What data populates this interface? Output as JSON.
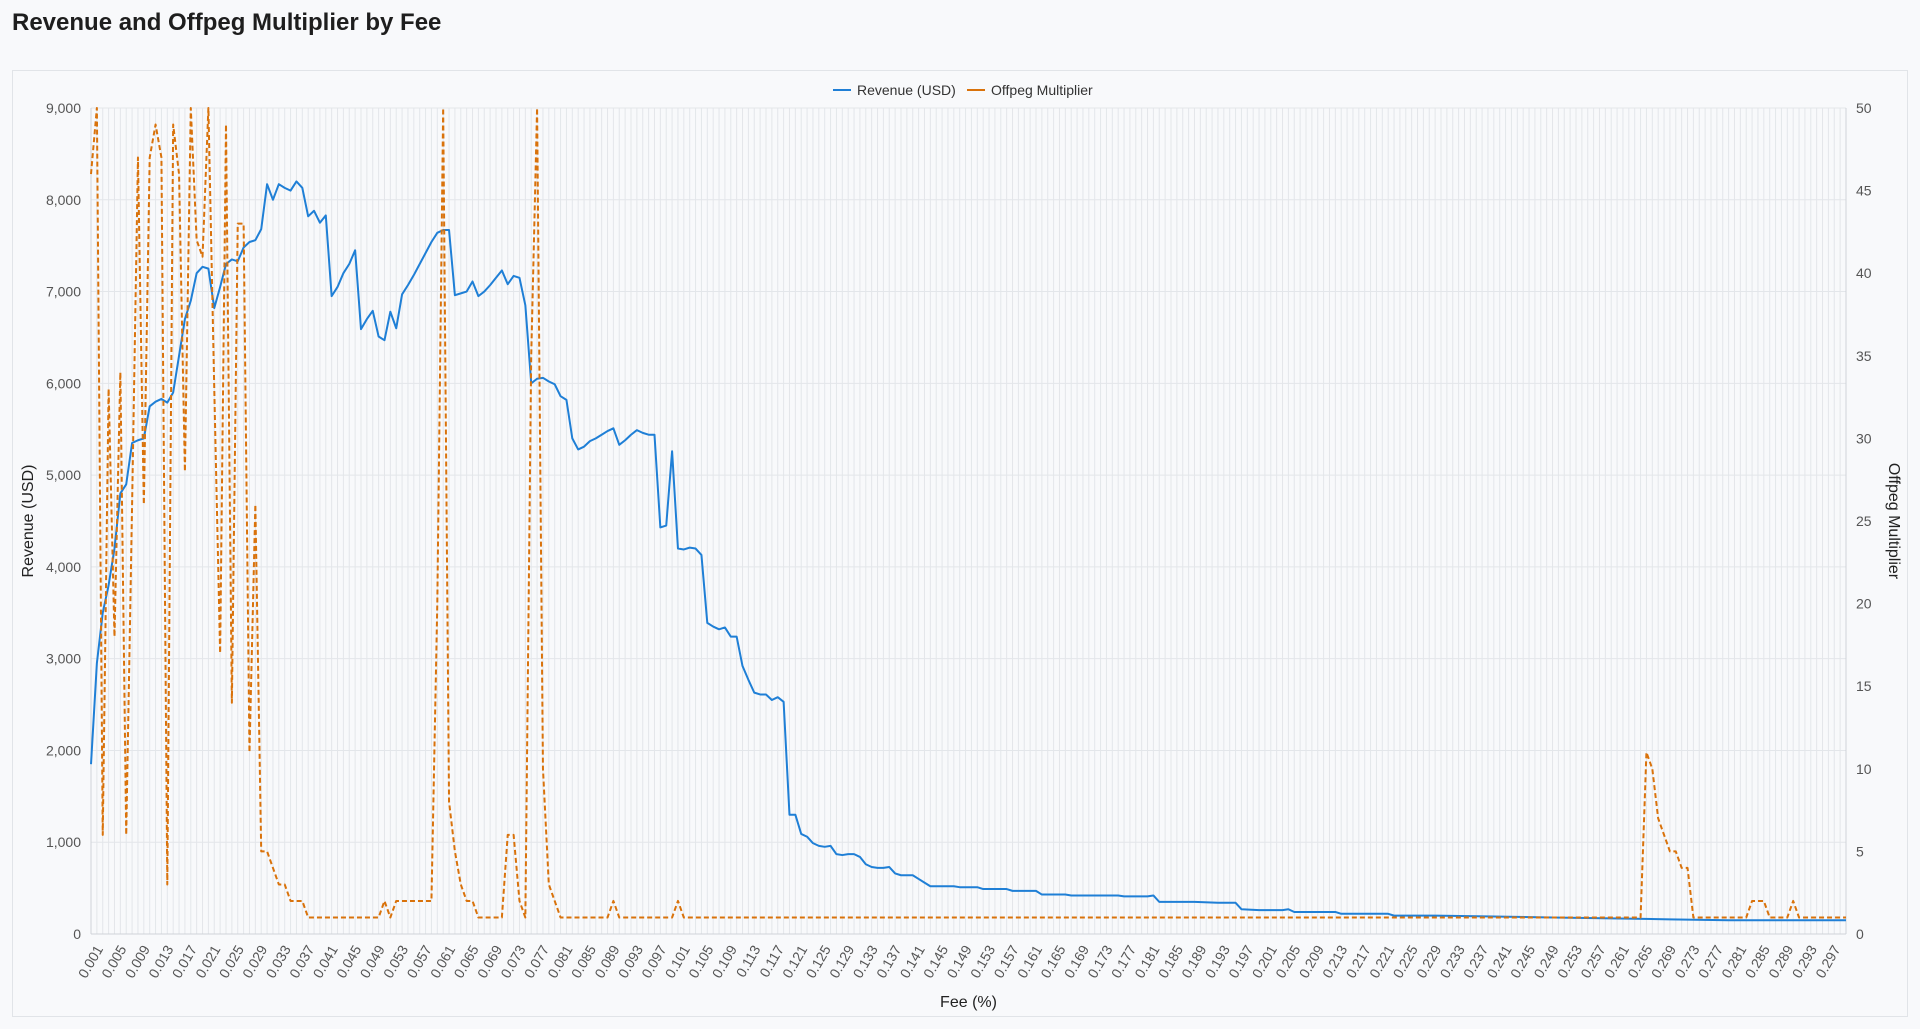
{
  "page": {
    "title": "Revenue and Offpeg Multiplier by Fee"
  },
  "chart_data": {
    "type": "line",
    "title": "",
    "xlabel": "Fee (%)",
    "ylabel_left": "Revenue (USD)",
    "ylabel_right": "Offpeg Multiplier",
    "xlim": [
      0.001,
      0.3
    ],
    "ylim_left": [
      0,
      9000
    ],
    "ylim_right": [
      0,
      50
    ],
    "y_ticks_left": [
      "0",
      "1,000",
      "2,000",
      "3,000",
      "4,000",
      "5,000",
      "6,000",
      "7,000",
      "8,000",
      "9,000"
    ],
    "y_ticks_right": [
      "0",
      "5",
      "10",
      "15",
      "20",
      "25",
      "30",
      "35",
      "40",
      "45",
      "50"
    ],
    "x_tick_labels": [
      "0.001",
      "0.005",
      "0.009",
      "0.013",
      "0.017",
      "0.021",
      "0.025",
      "0.029",
      "0.033",
      "0.037",
      "0.041",
      "0.045",
      "0.049",
      "0.053",
      "0.057",
      "0.061",
      "0.065",
      "0.069",
      "0.073",
      "0.077",
      "0.081",
      "0.085",
      "0.089",
      "0.093",
      "0.097",
      "0.101",
      "0.105",
      "0.109",
      "0.113",
      "0.117",
      "0.121",
      "0.125",
      "0.129",
      "0.133",
      "0.137",
      "0.141",
      "0.145",
      "0.149",
      "0.153",
      "0.157",
      "0.161",
      "0.165",
      "0.169",
      "0.173",
      "0.177",
      "0.181",
      "0.185",
      "0.189",
      "0.193",
      "0.197",
      "0.201",
      "0.205",
      "0.209",
      "0.213",
      "0.217",
      "0.221",
      "0.225",
      "0.229",
      "0.233",
      "0.237",
      "0.241",
      "0.245",
      "0.249",
      "0.253",
      "0.257",
      "0.261",
      "0.265",
      "0.269",
      "0.273",
      "0.277",
      "0.281",
      "0.285",
      "0.289",
      "0.293",
      "0.297"
    ],
    "grid": true,
    "legend_position": "top-center",
    "series": [
      {
        "name": "Revenue (USD)",
        "axis": "left",
        "color": "#1f7fd6",
        "style": "solid",
        "points": [
          [
            0.001,
            1850
          ],
          [
            0.002,
            2950
          ],
          [
            0.003,
            3500
          ],
          [
            0.004,
            3800
          ],
          [
            0.005,
            4200
          ],
          [
            0.006,
            4800
          ],
          [
            0.007,
            4900
          ],
          [
            0.008,
            5350
          ],
          [
            0.009,
            5380
          ],
          [
            0.01,
            5400
          ],
          [
            0.011,
            5750
          ],
          [
            0.012,
            5800
          ],
          [
            0.013,
            5830
          ],
          [
            0.014,
            5790
          ],
          [
            0.015,
            5900
          ],
          [
            0.016,
            6300
          ],
          [
            0.017,
            6700
          ],
          [
            0.018,
            6900
          ],
          [
            0.019,
            7200
          ],
          [
            0.02,
            7270
          ],
          [
            0.021,
            7250
          ],
          [
            0.022,
            6820
          ],
          [
            0.023,
            7050
          ],
          [
            0.024,
            7300
          ],
          [
            0.025,
            7350
          ],
          [
            0.026,
            7330
          ],
          [
            0.027,
            7480
          ],
          [
            0.028,
            7540
          ],
          [
            0.029,
            7560
          ],
          [
            0.03,
            7680
          ],
          [
            0.031,
            8170
          ],
          [
            0.032,
            8000
          ],
          [
            0.033,
            8170
          ],
          [
            0.034,
            8130
          ],
          [
            0.035,
            8100
          ],
          [
            0.036,
            8200
          ],
          [
            0.037,
            8130
          ],
          [
            0.038,
            7820
          ],
          [
            0.039,
            7880
          ],
          [
            0.04,
            7750
          ],
          [
            0.041,
            7830
          ],
          [
            0.042,
            6950
          ],
          [
            0.043,
            7050
          ],
          [
            0.044,
            7200
          ],
          [
            0.045,
            7300
          ],
          [
            0.046,
            7450
          ],
          [
            0.047,
            6590
          ],
          [
            0.048,
            6700
          ],
          [
            0.049,
            6790
          ],
          [
            0.05,
            6510
          ],
          [
            0.051,
            6470
          ],
          [
            0.052,
            6780
          ],
          [
            0.053,
            6600
          ],
          [
            0.054,
            6970
          ],
          [
            0.055,
            7070
          ],
          [
            0.056,
            7180
          ],
          [
            0.057,
            7300
          ],
          [
            0.058,
            7420
          ],
          [
            0.059,
            7540
          ],
          [
            0.06,
            7640
          ],
          [
            0.061,
            7670
          ],
          [
            0.062,
            7670
          ],
          [
            0.063,
            6960
          ],
          [
            0.064,
            6980
          ],
          [
            0.065,
            7000
          ],
          [
            0.066,
            7110
          ],
          [
            0.067,
            6950
          ],
          [
            0.068,
            7000
          ],
          [
            0.069,
            7070
          ],
          [
            0.07,
            7150
          ],
          [
            0.071,
            7230
          ],
          [
            0.072,
            7080
          ],
          [
            0.073,
            7170
          ],
          [
            0.074,
            7150
          ],
          [
            0.075,
            6850
          ],
          [
            0.076,
            6000
          ],
          [
            0.077,
            6050
          ],
          [
            0.078,
            6060
          ],
          [
            0.079,
            6020
          ],
          [
            0.08,
            5990
          ],
          [
            0.081,
            5860
          ],
          [
            0.082,
            5820
          ],
          [
            0.083,
            5400
          ],
          [
            0.084,
            5280
          ],
          [
            0.085,
            5310
          ],
          [
            0.086,
            5370
          ],
          [
            0.087,
            5400
          ],
          [
            0.088,
            5440
          ],
          [
            0.089,
            5480
          ],
          [
            0.09,
            5510
          ],
          [
            0.091,
            5330
          ],
          [
            0.092,
            5380
          ],
          [
            0.093,
            5440
          ],
          [
            0.094,
            5490
          ],
          [
            0.095,
            5460
          ],
          [
            0.096,
            5440
          ],
          [
            0.097,
            5440
          ],
          [
            0.098,
            4430
          ],
          [
            0.099,
            4450
          ],
          [
            0.1,
            5260
          ],
          [
            0.101,
            4200
          ],
          [
            0.102,
            4190
          ],
          [
            0.103,
            4210
          ],
          [
            0.104,
            4200
          ],
          [
            0.105,
            4130
          ],
          [
            0.106,
            3390
          ],
          [
            0.107,
            3350
          ],
          [
            0.108,
            3320
          ],
          [
            0.109,
            3340
          ],
          [
            0.11,
            3240
          ],
          [
            0.111,
            3240
          ],
          [
            0.112,
            2920
          ],
          [
            0.113,
            2770
          ],
          [
            0.114,
            2630
          ],
          [
            0.115,
            2610
          ],
          [
            0.116,
            2610
          ],
          [
            0.117,
            2550
          ],
          [
            0.118,
            2580
          ],
          [
            0.119,
            2530
          ],
          [
            0.12,
            1300
          ],
          [
            0.121,
            1300
          ],
          [
            0.122,
            1090
          ],
          [
            0.123,
            1060
          ],
          [
            0.124,
            990
          ],
          [
            0.125,
            960
          ],
          [
            0.126,
            950
          ],
          [
            0.127,
            960
          ],
          [
            0.128,
            870
          ],
          [
            0.129,
            860
          ],
          [
            0.13,
            870
          ],
          [
            0.131,
            870
          ],
          [
            0.132,
            840
          ],
          [
            0.133,
            760
          ],
          [
            0.134,
            730
          ],
          [
            0.135,
            720
          ],
          [
            0.136,
            720
          ],
          [
            0.137,
            730
          ],
          [
            0.138,
            660
          ],
          [
            0.139,
            640
          ],
          [
            0.14,
            640
          ],
          [
            0.141,
            640
          ],
          [
            0.142,
            600
          ],
          [
            0.143,
            560
          ],
          [
            0.144,
            520
          ],
          [
            0.145,
            520
          ],
          [
            0.148,
            520
          ],
          [
            0.149,
            510
          ],
          [
            0.152,
            510
          ],
          [
            0.153,
            490
          ],
          [
            0.157,
            490
          ],
          [
            0.158,
            470
          ],
          [
            0.162,
            470
          ],
          [
            0.163,
            430
          ],
          [
            0.167,
            430
          ],
          [
            0.168,
            420
          ],
          [
            0.176,
            420
          ],
          [
            0.177,
            410
          ],
          [
            0.181,
            410
          ],
          [
            0.182,
            420
          ],
          [
            0.183,
            350
          ],
          [
            0.189,
            350
          ],
          [
            0.193,
            340
          ],
          [
            0.196,
            340
          ],
          [
            0.197,
            270
          ],
          [
            0.2,
            260
          ],
          [
            0.204,
            260
          ],
          [
            0.205,
            270
          ],
          [
            0.206,
            240
          ],
          [
            0.213,
            240
          ],
          [
            0.214,
            220
          ],
          [
            0.222,
            220
          ],
          [
            0.223,
            200
          ],
          [
            0.23,
            200
          ],
          [
            0.24,
            190
          ],
          [
            0.25,
            180
          ],
          [
            0.26,
            170
          ],
          [
            0.27,
            160
          ],
          [
            0.28,
            150
          ],
          [
            0.29,
            150
          ],
          [
            0.3,
            150
          ]
        ]
      },
      {
        "name": "Offpeg Multiplier",
        "axis": "right",
        "color": "#d9720b",
        "style": "dashed",
        "points": [
          [
            0.001,
            46
          ],
          [
            0.002,
            50
          ],
          [
            0.003,
            6
          ],
          [
            0.004,
            33
          ],
          [
            0.005,
            18
          ],
          [
            0.006,
            34
          ],
          [
            0.007,
            6
          ],
          [
            0.008,
            26
          ],
          [
            0.009,
            47
          ],
          [
            0.01,
            26
          ],
          [
            0.011,
            47
          ],
          [
            0.012,
            49
          ],
          [
            0.013,
            47
          ],
          [
            0.014,
            3
          ],
          [
            0.015,
            49
          ],
          [
            0.016,
            46
          ],
          [
            0.017,
            28
          ],
          [
            0.018,
            50
          ],
          [
            0.019,
            42
          ],
          [
            0.02,
            41
          ],
          [
            0.021,
            50
          ],
          [
            0.022,
            33
          ],
          [
            0.023,
            17
          ],
          [
            0.024,
            49
          ],
          [
            0.025,
            14
          ],
          [
            0.026,
            43
          ],
          [
            0.027,
            43
          ],
          [
            0.028,
            11
          ],
          [
            0.029,
            26
          ],
          [
            0.03,
            5
          ],
          [
            0.031,
            5
          ],
          [
            0.032,
            4
          ],
          [
            0.033,
            3
          ],
          [
            0.034,
            3
          ],
          [
            0.035,
            2
          ],
          [
            0.036,
            2
          ],
          [
            0.037,
            2
          ],
          [
            0.038,
            1
          ],
          [
            0.05,
            1
          ],
          [
            0.051,
            2
          ],
          [
            0.052,
            1
          ],
          [
            0.053,
            2
          ],
          [
            0.058,
            2
          ],
          [
            0.059,
            2
          ],
          [
            0.06,
            20
          ],
          [
            0.061,
            50
          ],
          [
            0.062,
            8
          ],
          [
            0.063,
            5
          ],
          [
            0.064,
            3
          ],
          [
            0.065,
            2
          ],
          [
            0.066,
            2
          ],
          [
            0.067,
            1
          ],
          [
            0.071,
            1
          ],
          [
            0.072,
            6
          ],
          [
            0.073,
            6
          ],
          [
            0.074,
            2
          ],
          [
            0.075,
            1
          ],
          [
            0.076,
            35
          ],
          [
            0.077,
            50
          ],
          [
            0.078,
            10
          ],
          [
            0.079,
            3
          ],
          [
            0.08,
            2
          ],
          [
            0.081,
            1
          ],
          [
            0.089,
            1
          ],
          [
            0.09,
            2
          ],
          [
            0.091,
            1
          ],
          [
            0.1,
            1
          ],
          [
            0.101,
            2
          ],
          [
            0.102,
            1
          ],
          [
            0.264,
            1
          ],
          [
            0.265,
            1
          ],
          [
            0.266,
            11
          ],
          [
            0.267,
            10
          ],
          [
            0.268,
            7
          ],
          [
            0.269,
            6
          ],
          [
            0.27,
            5
          ],
          [
            0.271,
            5
          ],
          [
            0.272,
            4
          ],
          [
            0.273,
            4
          ],
          [
            0.274,
            1
          ],
          [
            0.283,
            1
          ],
          [
            0.284,
            2
          ],
          [
            0.285,
            2
          ],
          [
            0.286,
            2
          ],
          [
            0.287,
            1
          ],
          [
            0.29,
            1
          ],
          [
            0.291,
            2
          ],
          [
            0.292,
            1
          ],
          [
            0.3,
            1
          ]
        ]
      }
    ]
  }
}
